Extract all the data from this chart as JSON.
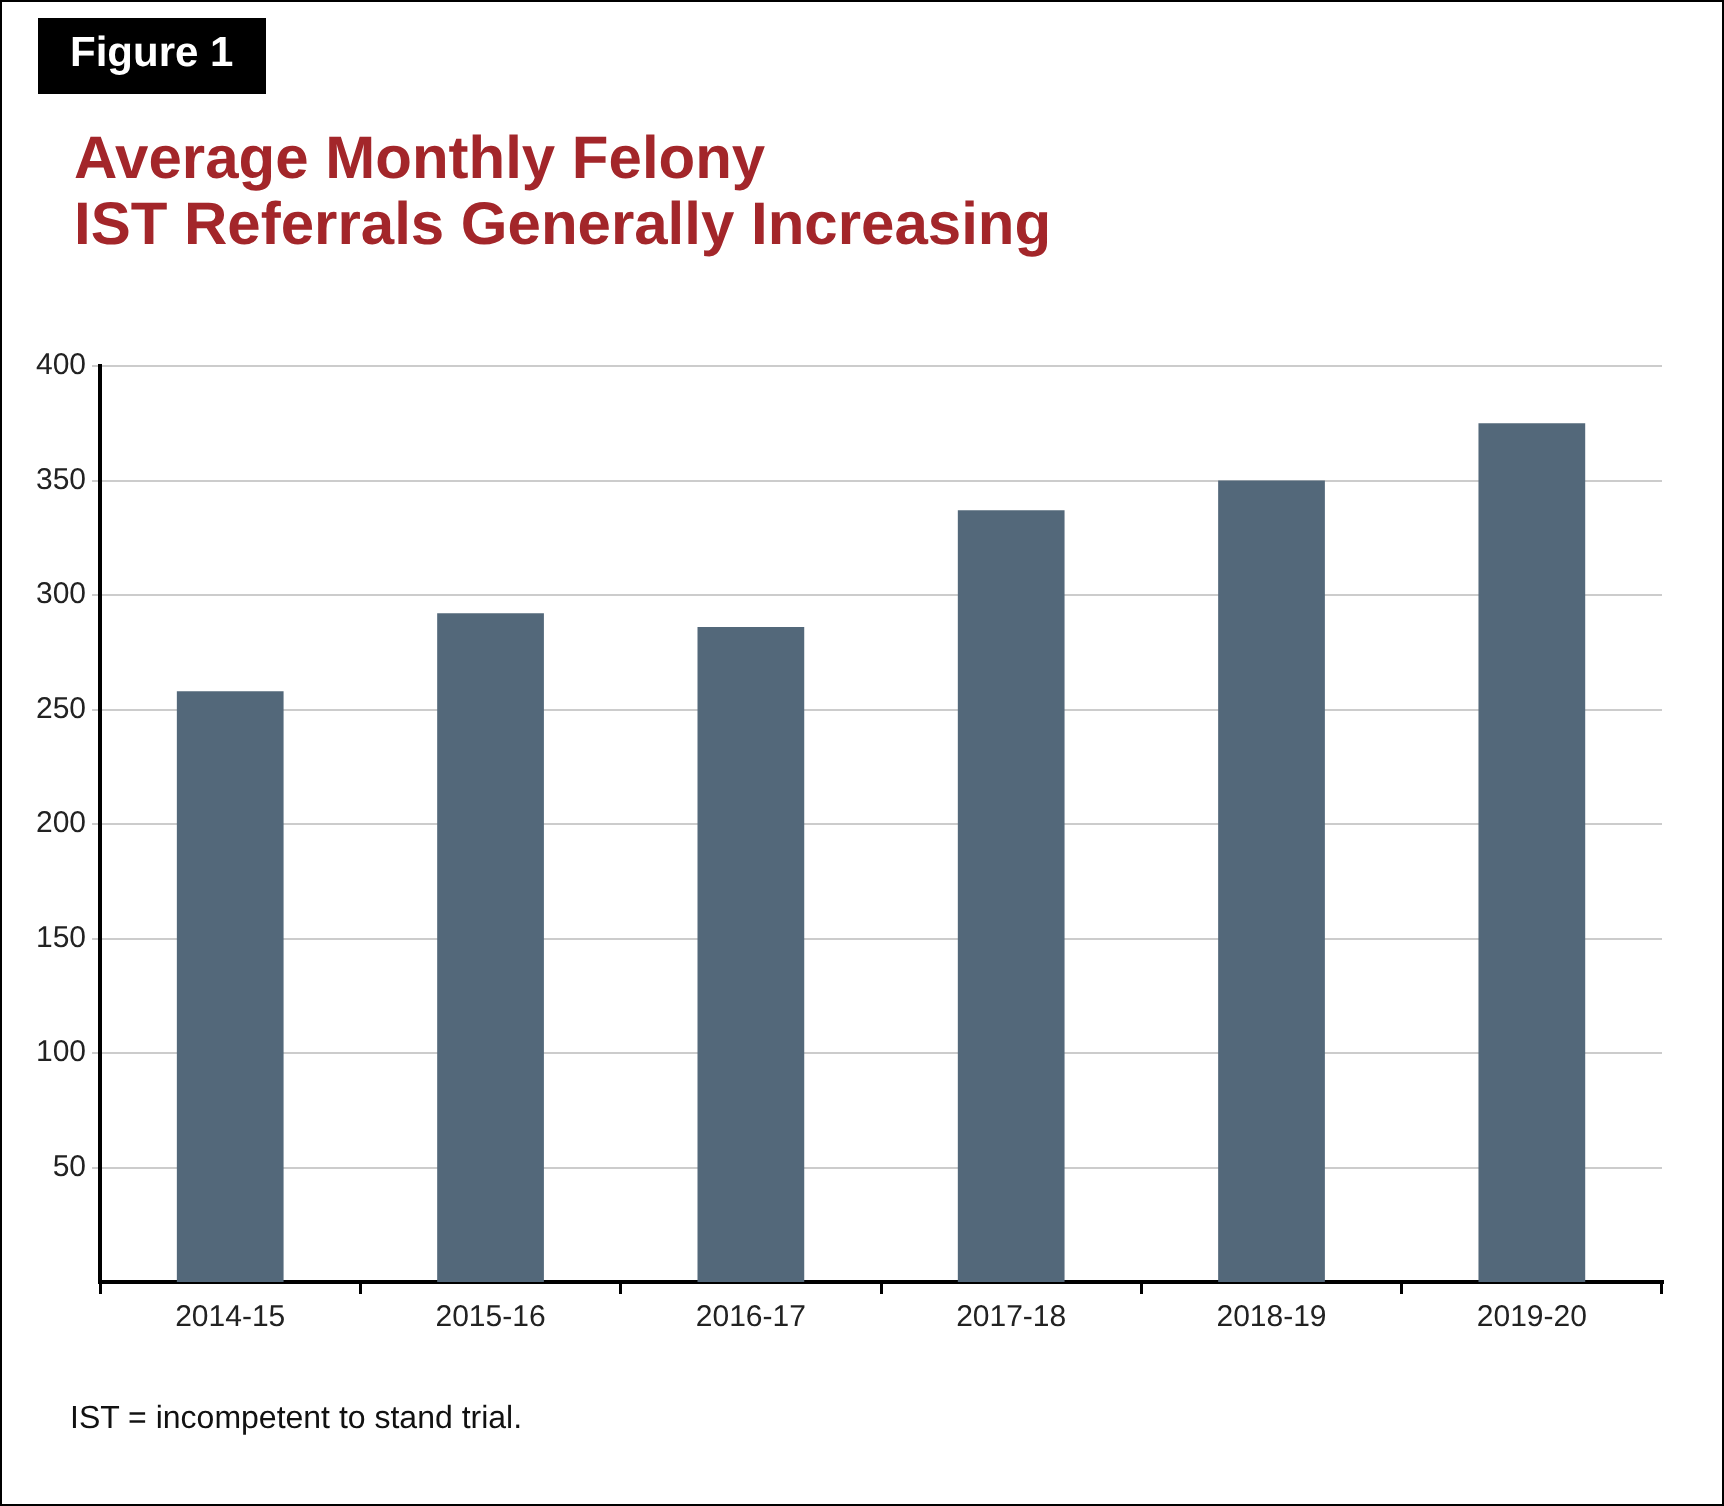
{
  "chart_data": {
    "type": "bar",
    "title": "Average Monthly Felony\nIST Referrals Generally Increasing",
    "annotations": [
      "Figure 1",
      "IST = incompetent to stand trial."
    ],
    "categories": [
      "2014-15",
      "2015-16",
      "2016-17",
      "2017-18",
      "2018-19",
      "2019-20"
    ],
    "values": [
      258,
      292,
      286,
      337,
      350,
      375
    ],
    "color": "#53687a",
    "ylim": [
      0,
      400
    ],
    "yticks": [
      50,
      100,
      150,
      200,
      250,
      300,
      350,
      400
    ],
    "grid": "y"
  }
}
